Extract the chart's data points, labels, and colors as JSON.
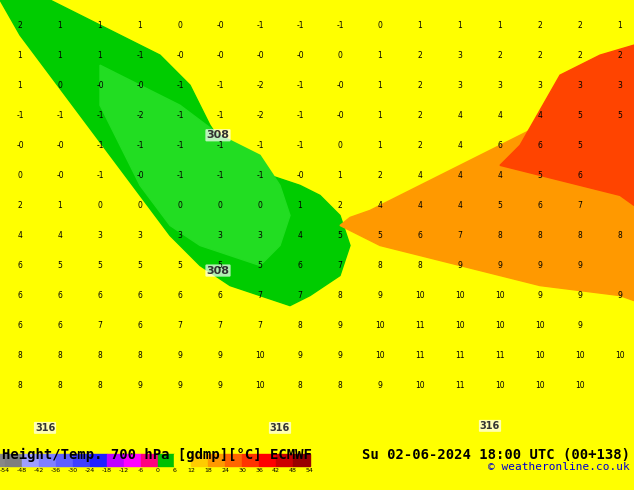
{
  "title_left": "Height/Temp. 700 hPa [gdmp][°C] ECMWF",
  "title_right": "Su 02-06-2024 18:00 UTC (00+138)",
  "copyright": "© weatheronline.co.uk",
  "colorbar_values": [
    -54,
    -48,
    -42,
    -36,
    -30,
    -24,
    -18,
    -12,
    -6,
    0,
    6,
    12,
    18,
    24,
    30,
    36,
    42,
    48,
    54
  ],
  "colorbar_colors": [
    "#7f7f7f",
    "#9f9fff",
    "#7f7fff",
    "#5f5fff",
    "#3f3fff",
    "#1f1fff",
    "#bf00ff",
    "#ff00ff",
    "#ff007f",
    "#00c000",
    "#ffff00",
    "#ffcc00",
    "#ff9900",
    "#ff6600",
    "#ff3300",
    "#ff0000",
    "#cc0000",
    "#990000"
  ],
  "bg_color": "#ffff00",
  "map_bg": "#ffffff",
  "bottom_bar_color": "#ffdd00",
  "label_color": "#000000",
  "title_font_size": 10,
  "copy_font_size": 8
}
